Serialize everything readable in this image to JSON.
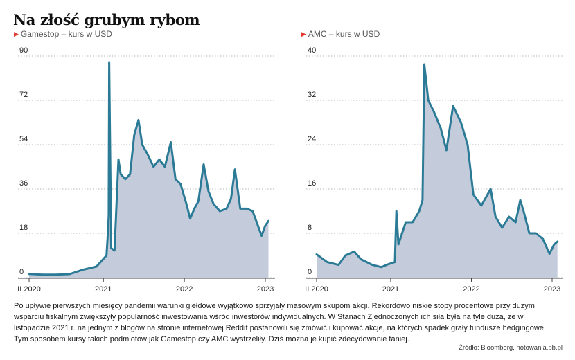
{
  "title": "Na złość grubym rybom",
  "description": "Po upływie pierwszych miesięcy pandemii warunki giełdowe wyjątkowo sprzyjały masowym skupom akcji. Rekordowo niskie stopy procentowe przy dużym wsparciu fiskalnym zwiększyły popularność inwestowania wśród inwestorów indywidualnych. W Stanach Zjednoczonych ich siła była na tyle duża, że w listopadzie 2021 r. na jednym z blogów na stronie internetowej Reddit postanowili się zmówić i kupować akcje, na których spadek grały fundusze hedgingowe. Tym sposobem kursy takich podmiotów jak Gamestop czy AMC wystrzeliły. Dziś można je kupić zdecydowanie taniej.",
  "source": "Źródło: Bloomberg, notowania.pb.pl",
  "colors": {
    "line": "#2b7a96",
    "area": "#c4ccdb",
    "grid": "#9aa0a6",
    "accent": "#e23a2e"
  },
  "chart_data": [
    {
      "type": "area",
      "title": "Gamestop – kurs w USD",
      "ylim": [
        0,
        90
      ],
      "yticks": [
        "0",
        "18",
        "36",
        "54",
        "72",
        "90"
      ],
      "xticks": [
        "II 2020",
        "2021",
        "2022",
        "2023"
      ],
      "x": [
        "2020-02",
        "2020-04",
        "2020-06",
        "2020-08",
        "2020-10",
        "2020-12",
        "2021-01-15",
        "2021-01-20",
        "2021-01-25",
        "2021-01-27",
        "2021-02-05",
        "2021-02-20",
        "2021-03-10",
        "2021-03-20",
        "2021-04-10",
        "2021-05-01",
        "2021-05-20",
        "2021-06-08",
        "2021-06-25",
        "2021-07-20",
        "2021-08-15",
        "2021-09-10",
        "2021-10-05",
        "2021-11-01",
        "2021-11-22",
        "2021-12-15",
        "2022-01-10",
        "2022-01-27",
        "2022-02-15",
        "2022-03-05",
        "2022-03-29",
        "2022-04-20",
        "2022-05-12",
        "2022-06-10",
        "2022-07-10",
        "2022-07-30",
        "2022-08-17",
        "2022-09-10",
        "2022-10-10",
        "2022-11-05",
        "2022-11-25",
        "2022-12-15",
        "2022-12-31",
        "2023-01-15"
      ],
      "values": [
        1.5,
        1.2,
        1.2,
        1.4,
        3.2,
        4.5,
        9,
        16,
        25,
        87.5,
        12,
        11,
        48,
        42,
        40,
        42,
        58,
        64,
        54,
        50,
        45,
        48,
        45,
        55,
        40,
        38,
        30,
        24,
        28,
        31,
        46,
        35,
        30,
        27,
        28,
        32,
        44,
        28,
        28,
        27,
        22,
        17,
        21,
        23
      ]
    },
    {
      "type": "area",
      "title": "AMC – kurs w USD",
      "ylim": [
        0,
        40
      ],
      "yticks": [
        "0",
        "8",
        "16",
        "24",
        "32",
        "40"
      ],
      "xticks": [
        "II 2020",
        "2021",
        "2022",
        "2023"
      ],
      "x": [
        "2020-02",
        "2020-03-20",
        "2020-05-10",
        "2020-06-10",
        "2020-07-20",
        "2020-08-20",
        "2020-10-10",
        "2020-11-20",
        "2020-12-20",
        "2021-01-20",
        "2021-01-27",
        "2021-02-05",
        "2021-03-10",
        "2021-04-10",
        "2021-05-10",
        "2021-05-25",
        "2021-06-02",
        "2021-06-20",
        "2021-07-15",
        "2021-08-15",
        "2021-09-10",
        "2021-10-10",
        "2021-11-15",
        "2021-12-15",
        "2022-01-10",
        "2022-02-15",
        "2022-03-29",
        "2022-04-20",
        "2022-05-20",
        "2022-06-20",
        "2022-07-20",
        "2022-08-10",
        "2022-08-25",
        "2022-09-20",
        "2022-10-20",
        "2022-11-20",
        "2022-12-20",
        "2023-01-10",
        "2023-01-25"
      ],
      "values": [
        4.2,
        2.8,
        2.3,
        4,
        4.7,
        3.3,
        2.3,
        1.9,
        2.4,
        2.8,
        12,
        6,
        10,
        10,
        12,
        14,
        38.5,
        32,
        30,
        27,
        23,
        31,
        28,
        24,
        15,
        13,
        16,
        11,
        9,
        11,
        10,
        14,
        12,
        8,
        8,
        7,
        4.3,
        6,
        6.5
      ]
    }
  ]
}
